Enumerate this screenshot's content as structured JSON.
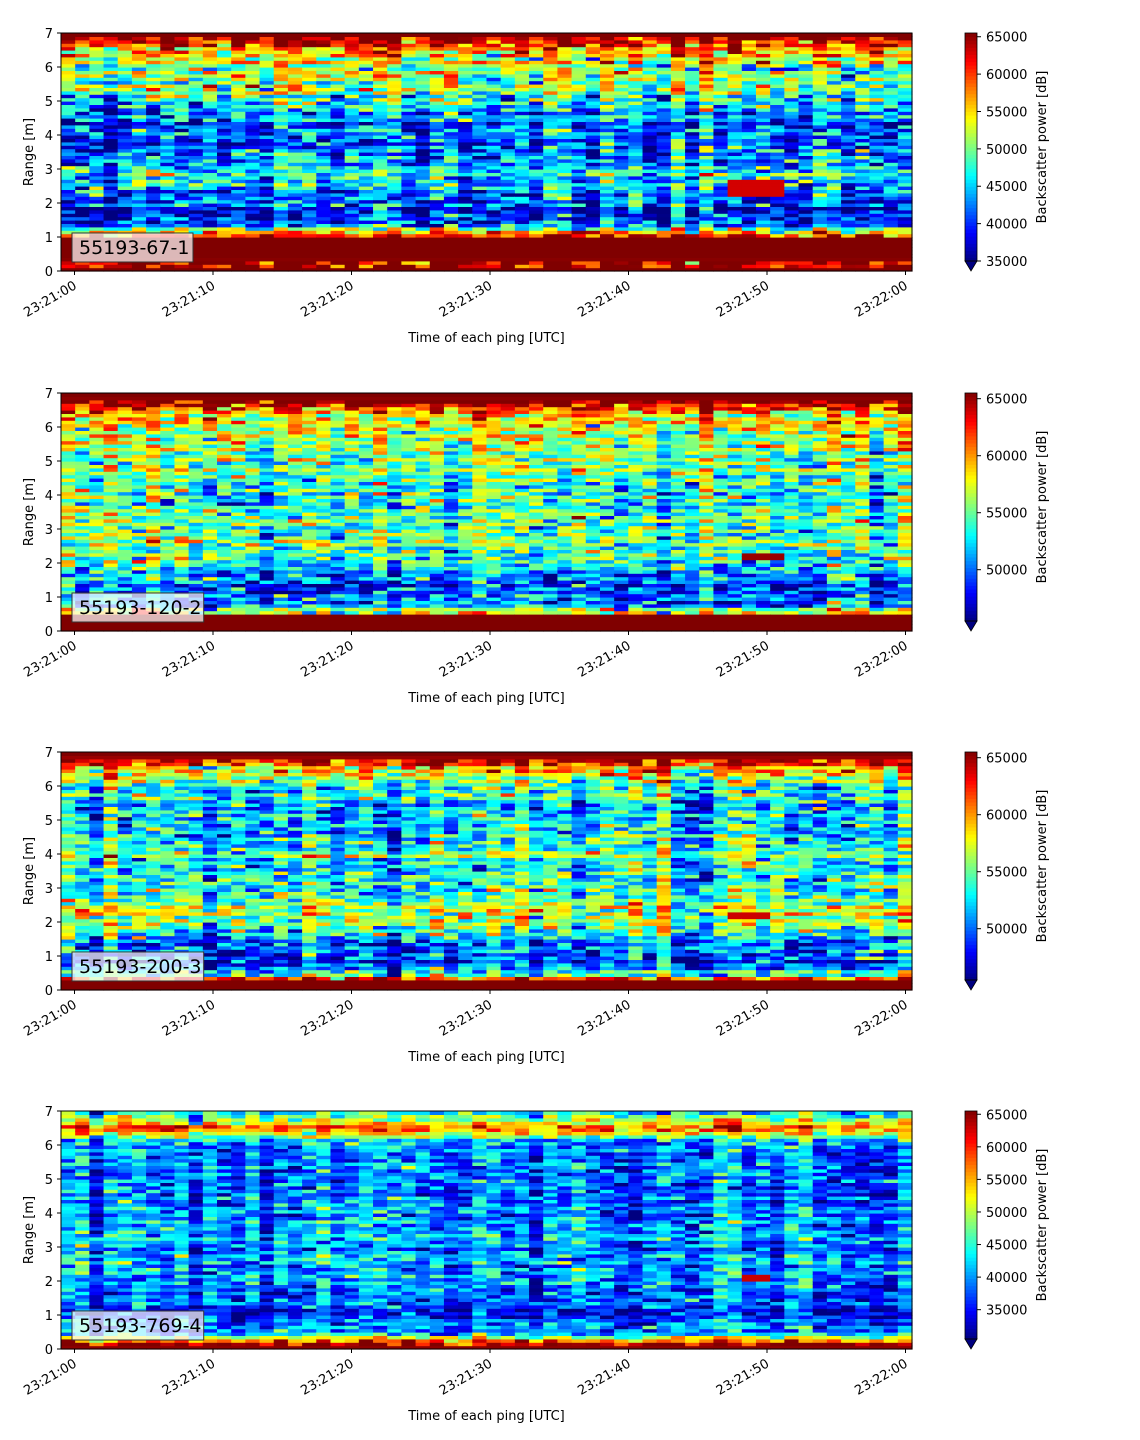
{
  "chart_data": [
    {
      "type": "heatmap",
      "label": "55193-67-1",
      "xlabel": "Time of each ping [UTC]",
      "ylabel": "Range [m]",
      "x_ticks": [
        "23:21:00",
        "23:21:10",
        "23:21:20",
        "23:21:30",
        "23:21:40",
        "23:21:50",
        "23:22:00"
      ],
      "x_range_seconds": [
        0,
        60
      ],
      "ylim": [
        0,
        7
      ],
      "y_ticks": [
        0,
        1,
        2,
        3,
        4,
        5,
        6,
        7
      ],
      "colorbar": {
        "label": "Backscatter power [dB]",
        "ticks": [
          35000,
          40000,
          45000,
          50000,
          55000,
          60000,
          65000
        ],
        "vmin": 35000,
        "vmax": 65500,
        "extend": "min",
        "colormap": "jet"
      },
      "profile": [
        [
          0.0,
          66000
        ],
        [
          0.2,
          64500
        ],
        [
          0.5,
          66000
        ],
        [
          1.0,
          66000
        ],
        [
          1.15,
          56000
        ],
        [
          1.3,
          44000
        ],
        [
          1.55,
          38000
        ],
        [
          1.9,
          39500
        ],
        [
          2.3,
          44000
        ],
        [
          2.7,
          46000
        ],
        [
          3.2,
          44000
        ],
        [
          3.7,
          41000
        ],
        [
          4.3,
          43500
        ],
        [
          4.8,
          46000
        ],
        [
          5.3,
          48000
        ],
        [
          5.8,
          50000
        ],
        [
          6.2,
          54000
        ],
        [
          6.5,
          59000
        ],
        [
          6.75,
          64000
        ],
        [
          7.0,
          66000
        ]
      ],
      "noise": 4200,
      "bright_patch": {
        "time_s": [
          47.5,
          51.5
        ],
        "range_m": [
          2.2,
          2.7
        ],
        "value": 63000
      },
      "seed": 11
    },
    {
      "type": "heatmap",
      "label": "55193-120-2",
      "xlabel": "Time of each ping [UTC]",
      "ylabel": "Range [m]",
      "x_ticks": [
        "23:21:00",
        "23:21:10",
        "23:21:20",
        "23:21:30",
        "23:21:40",
        "23:21:50",
        "23:22:00"
      ],
      "x_range_seconds": [
        0,
        60
      ],
      "ylim": [
        0,
        7
      ],
      "y_ticks": [
        0,
        1,
        2,
        3,
        4,
        5,
        6,
        7
      ],
      "colorbar": {
        "label": "Backscatter power [dB]",
        "ticks": [
          50000,
          55000,
          60000,
          65000
        ],
        "vmin": 45500,
        "vmax": 65500,
        "extend": "min",
        "colormap": "jet"
      },
      "profile": [
        [
          0.0,
          66000
        ],
        [
          0.45,
          66000
        ],
        [
          0.6,
          54000
        ],
        [
          0.9,
          50000
        ],
        [
          1.3,
          49500
        ],
        [
          1.8,
          51000
        ],
        [
          2.3,
          54500
        ],
        [
          2.8,
          53500
        ],
        [
          3.5,
          54000
        ],
        [
          4.2,
          53500
        ],
        [
          4.8,
          54500
        ],
        [
          5.4,
          55500
        ],
        [
          6.0,
          57000
        ],
        [
          6.4,
          60000
        ],
        [
          6.7,
          64500
        ],
        [
          7.0,
          66000
        ]
      ],
      "noise": 2600,
      "bright_patch": {
        "time_s": [
          48.5,
          51.5
        ],
        "range_m": [
          2.1,
          2.3
        ],
        "value": 65000
      },
      "seed": 23
    },
    {
      "type": "heatmap",
      "label": "55193-200-3",
      "xlabel": "Time of each ping [UTC]",
      "ylabel": "Range [m]",
      "x_ticks": [
        "23:21:00",
        "23:21:10",
        "23:21:20",
        "23:21:30",
        "23:21:40",
        "23:21:50",
        "23:22:00"
      ],
      "x_range_seconds": [
        0,
        60
      ],
      "ylim": [
        0,
        7
      ],
      "y_ticks": [
        0,
        1,
        2,
        3,
        4,
        5,
        6,
        7
      ],
      "colorbar": {
        "label": "Backscatter power [dB]",
        "ticks": [
          50000,
          55000,
          60000,
          65000
        ],
        "vmin": 45500,
        "vmax": 65500,
        "extend": "min",
        "colormap": "jet"
      },
      "profile": [
        [
          0.0,
          66000
        ],
        [
          0.3,
          66000
        ],
        [
          0.45,
          55000
        ],
        [
          0.8,
          50000
        ],
        [
          1.3,
          50500
        ],
        [
          1.8,
          55000
        ],
        [
          2.4,
          56000
        ],
        [
          3.0,
          54000
        ],
        [
          3.8,
          53500
        ],
        [
          4.5,
          53000
        ],
        [
          5.3,
          52500
        ],
        [
          6.0,
          54000
        ],
        [
          6.4,
          58500
        ],
        [
          6.7,
          64000
        ],
        [
          7.0,
          66000
        ]
      ],
      "noise": 2600,
      "bright_patch": {
        "time_s": [
          47.5,
          50.5
        ],
        "range_m": [
          2.1,
          2.3
        ],
        "value": 64000
      },
      "seed": 37
    },
    {
      "type": "heatmap",
      "label": "55193-769-4",
      "xlabel": "Time of each ping [UTC]",
      "ylabel": "Range [m]",
      "x_ticks": [
        "23:21:00",
        "23:21:10",
        "23:21:20",
        "23:21:30",
        "23:21:40",
        "23:21:50",
        "23:22:00"
      ],
      "x_range_seconds": [
        0,
        60
      ],
      "ylim": [
        0,
        7
      ],
      "y_ticks": [
        0,
        1,
        2,
        3,
        4,
        5,
        6,
        7
      ],
      "colorbar": {
        "label": "Backscatter power [dB]",
        "ticks": [
          35000,
          40000,
          45000,
          50000,
          55000,
          60000,
          65000
        ],
        "vmin": 30500,
        "vmax": 65500,
        "extend": "min",
        "colormap": "jet"
      },
      "profile": [
        [
          0.0,
          66000
        ],
        [
          0.2,
          62000
        ],
        [
          0.3,
          52000
        ],
        [
          0.5,
          40000
        ],
        [
          1.0,
          36500
        ],
        [
          1.5,
          37000
        ],
        [
          2.0,
          39000
        ],
        [
          2.6,
          40500
        ],
        [
          3.3,
          39500
        ],
        [
          4.0,
          38500
        ],
        [
          4.8,
          38000
        ],
        [
          5.5,
          38500
        ],
        [
          6.1,
          41000
        ],
        [
          6.3,
          47000
        ],
        [
          6.5,
          60000
        ],
        [
          6.7,
          50000
        ],
        [
          7.0,
          43000
        ]
      ],
      "noise": 3600,
      "bright_patch": {
        "time_s": [
          48.5,
          50.5
        ],
        "range_m": [
          2.05,
          2.2
        ],
        "value": 63000
      },
      "seed": 53
    }
  ]
}
